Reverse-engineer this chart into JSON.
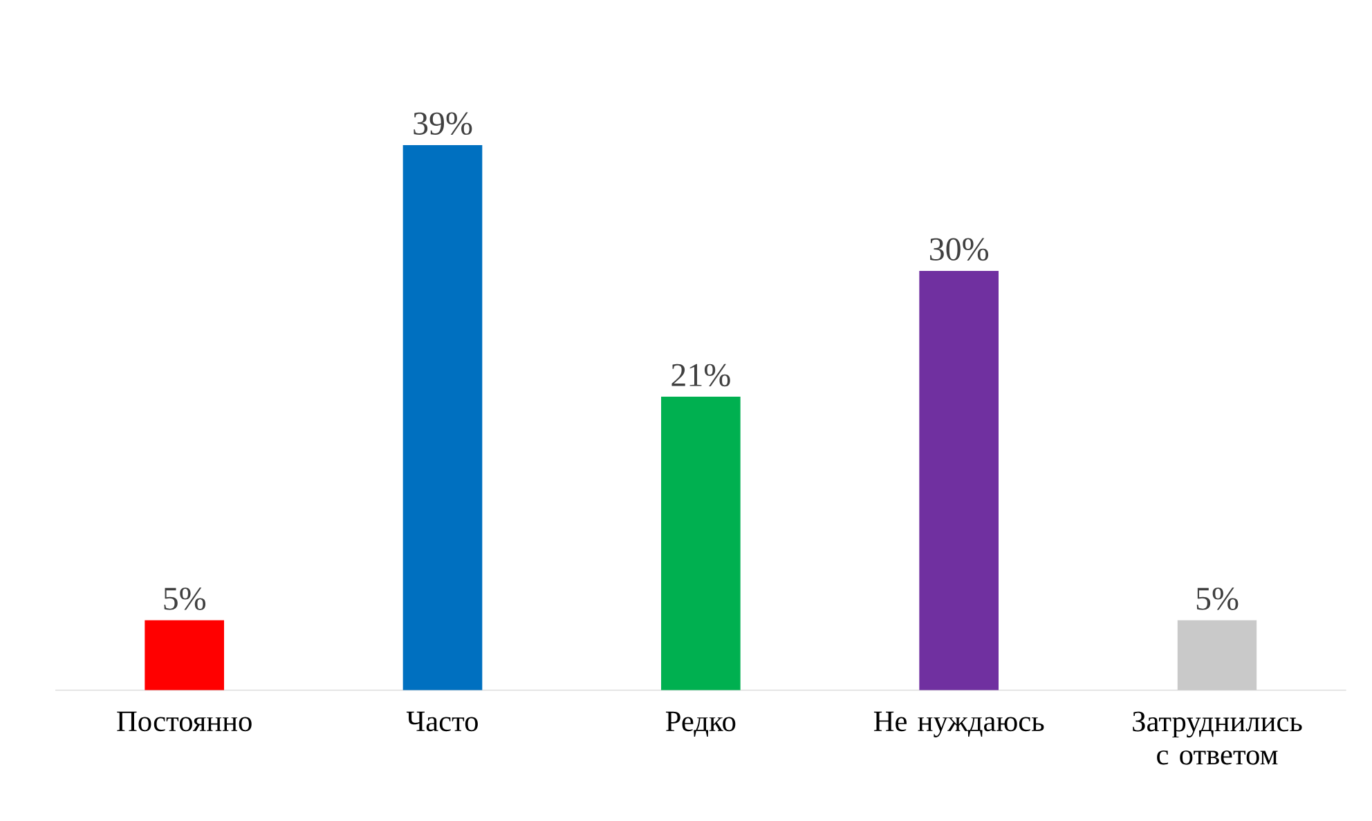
{
  "chart_data": {
    "type": "bar",
    "categories": [
      "Постоянно",
      "Часто",
      "Редко",
      "Не нуждаюсь",
      "Затруднились с ответом"
    ],
    "values": [
      5,
      39,
      21,
      30,
      5
    ],
    "colors": [
      "#ff0000",
      "#0070c0",
      "#00b050",
      "#7030a0",
      "#c9c9c9"
    ],
    "value_labels": [
      "5%",
      "39%",
      "21%",
      "30%",
      "5%"
    ]
  }
}
